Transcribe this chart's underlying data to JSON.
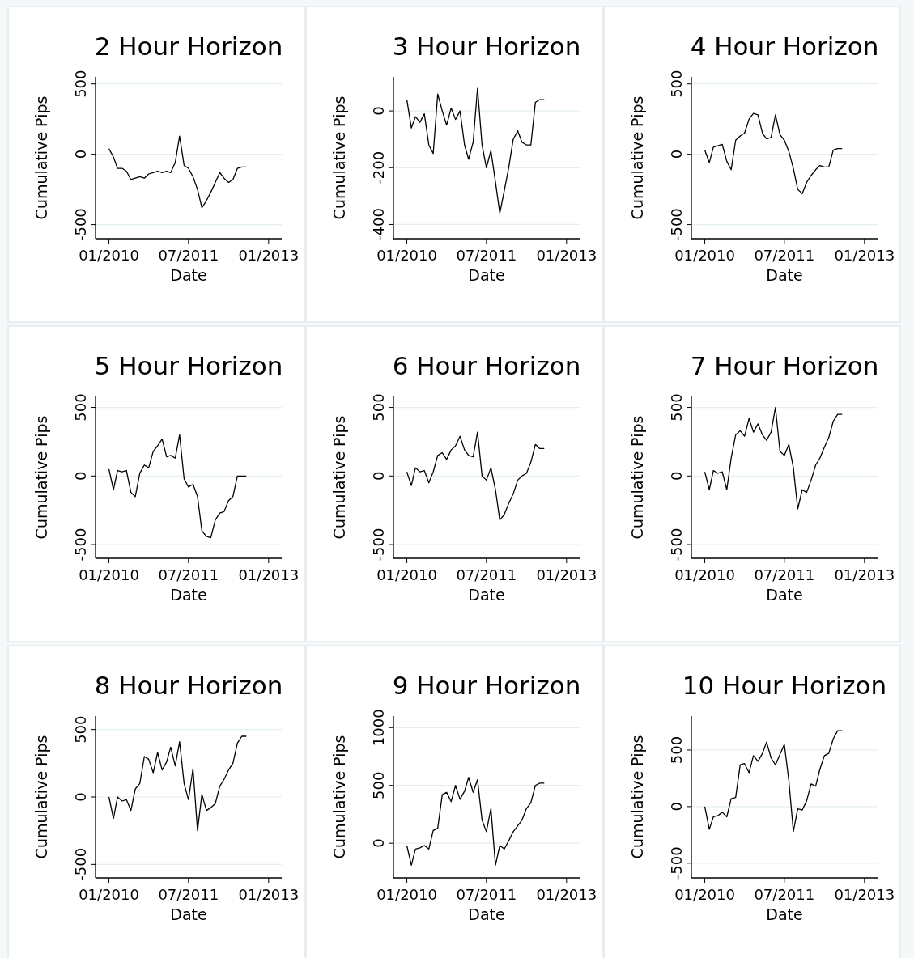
{
  "chart_data": [
    {
      "type": "line",
      "title": "2 Hour Horizon",
      "xlabel": "Date",
      "ylabel": "Cumulative Pips",
      "grid": "y",
      "color": "#000000",
      "xlim": [
        "2009-10",
        "2013-04"
      ],
      "xticks": [
        {
          "value": "2010-01",
          "label": "01/2010"
        },
        {
          "value": "2011-07",
          "label": "07/2011"
        },
        {
          "value": "2013-01",
          "label": "01/2013"
        }
      ],
      "ylim": [
        -600,
        550
      ],
      "yticks": [
        -500,
        0,
        500
      ],
      "x": [
        "2010-01",
        "2010-02",
        "2010-03",
        "2010-04",
        "2010-05",
        "2010-06",
        "2010-07",
        "2010-08",
        "2010-09",
        "2010-10",
        "2010-11",
        "2010-12",
        "2011-01",
        "2011-02",
        "2011-03",
        "2011-04",
        "2011-05",
        "2011-06",
        "2011-07",
        "2011-08",
        "2011-09",
        "2011-10",
        "2011-11",
        "2011-12",
        "2012-01",
        "2012-02",
        "2012-03",
        "2012-04",
        "2012-05",
        "2012-06",
        "2012-07",
        "2012-08"
      ],
      "values": [
        40,
        -20,
        -100,
        -100,
        -120,
        -180,
        -170,
        -160,
        -170,
        -140,
        -130,
        -120,
        -130,
        -120,
        -130,
        -60,
        130,
        -80,
        -100,
        -160,
        -250,
        -380,
        -330,
        -270,
        -200,
        -130,
        -170,
        -200,
        -180,
        -100,
        -90,
        -90
      ]
    },
    {
      "type": "line",
      "title": "3 Hour Horizon",
      "xlabel": "Date",
      "ylabel": "Cumulative Pips",
      "grid": "y",
      "color": "#000000",
      "xlim": [
        "2009-10",
        "2013-04"
      ],
      "xticks": [
        {
          "value": "2010-01",
          "label": "01/2010"
        },
        {
          "value": "2011-07",
          "label": "07/2011"
        },
        {
          "value": "2013-01",
          "label": "01/2013"
        }
      ],
      "ylim": [
        -450,
        120
      ],
      "yticks": [
        -400,
        -200,
        0
      ],
      "x": [
        "2010-01",
        "2010-02",
        "2010-03",
        "2010-04",
        "2010-05",
        "2010-06",
        "2010-07",
        "2010-08",
        "2010-09",
        "2010-10",
        "2010-11",
        "2010-12",
        "2011-01",
        "2011-02",
        "2011-03",
        "2011-04",
        "2011-05",
        "2011-06",
        "2011-07",
        "2011-08",
        "2011-09",
        "2011-10",
        "2011-11",
        "2011-12",
        "2012-01",
        "2012-02",
        "2012-03",
        "2012-04",
        "2012-05",
        "2012-06",
        "2012-07",
        "2012-08"
      ],
      "values": [
        40,
        -60,
        -20,
        -40,
        -10,
        -120,
        -150,
        60,
        0,
        -50,
        10,
        -30,
        0,
        -120,
        -170,
        -110,
        80,
        -120,
        -200,
        -140,
        -250,
        -360,
        -280,
        -200,
        -100,
        -70,
        -110,
        -120,
        -120,
        30,
        40,
        40
      ]
    },
    {
      "type": "line",
      "title": "4 Hour Horizon",
      "xlabel": "Date",
      "ylabel": "Cumulative Pips",
      "grid": "y",
      "color": "#000000",
      "xlim": [
        "2009-10",
        "2013-04"
      ],
      "xticks": [
        {
          "value": "2010-01",
          "label": "01/2010"
        },
        {
          "value": "2011-07",
          "label": "07/2011"
        },
        {
          "value": "2013-01",
          "label": "01/2013"
        }
      ],
      "ylim": [
        -600,
        550
      ],
      "yticks": [
        -500,
        0,
        500
      ],
      "x": [
        "2010-01",
        "2010-02",
        "2010-03",
        "2010-04",
        "2010-05",
        "2010-06",
        "2010-07",
        "2010-08",
        "2010-09",
        "2010-10",
        "2010-11",
        "2010-12",
        "2011-01",
        "2011-02",
        "2011-03",
        "2011-04",
        "2011-05",
        "2011-06",
        "2011-07",
        "2011-08",
        "2011-09",
        "2011-10",
        "2011-11",
        "2011-12",
        "2012-01",
        "2012-02",
        "2012-03",
        "2012-04",
        "2012-05",
        "2012-06",
        "2012-07",
        "2012-08"
      ],
      "values": [
        30,
        -60,
        50,
        60,
        70,
        -50,
        -110,
        100,
        130,
        150,
        250,
        290,
        280,
        150,
        110,
        120,
        280,
        140,
        100,
        20,
        -100,
        -250,
        -280,
        -200,
        -150,
        -110,
        -80,
        -90,
        -90,
        30,
        40,
        40
      ]
    },
    {
      "type": "line",
      "title": "5 Hour Horizon",
      "xlabel": "Date",
      "ylabel": "Cumulative Pips",
      "grid": "y",
      "color": "#000000",
      "xlim": [
        "2009-10",
        "2013-04"
      ],
      "xticks": [
        {
          "value": "2010-01",
          "label": "01/2010"
        },
        {
          "value": "2011-07",
          "label": "07/2011"
        },
        {
          "value": "2013-01",
          "label": "01/2013"
        }
      ],
      "ylim": [
        -600,
        580
      ],
      "yticks": [
        -500,
        0,
        500
      ],
      "x": [
        "2010-01",
        "2010-02",
        "2010-03",
        "2010-04",
        "2010-05",
        "2010-06",
        "2010-07",
        "2010-08",
        "2010-09",
        "2010-10",
        "2010-11",
        "2010-12",
        "2011-01",
        "2011-02",
        "2011-03",
        "2011-04",
        "2011-05",
        "2011-06",
        "2011-07",
        "2011-08",
        "2011-09",
        "2011-10",
        "2011-11",
        "2011-12",
        "2012-01",
        "2012-02",
        "2012-03",
        "2012-04",
        "2012-05",
        "2012-06",
        "2012-07",
        "2012-08"
      ],
      "values": [
        50,
        -100,
        40,
        30,
        40,
        -120,
        -150,
        20,
        80,
        60,
        180,
        220,
        270,
        140,
        150,
        130,
        300,
        -20,
        -80,
        -60,
        -150,
        -400,
        -440,
        -450,
        -320,
        -270,
        -260,
        -180,
        -150,
        0,
        0,
        0
      ]
    },
    {
      "type": "line",
      "title": "6 Hour Horizon",
      "xlabel": "Date",
      "ylabel": "Cumulative Pips",
      "grid": "y",
      "color": "#000000",
      "xlim": [
        "2009-10",
        "2013-04"
      ],
      "xticks": [
        {
          "value": "2010-01",
          "label": "01/2010"
        },
        {
          "value": "2011-07",
          "label": "07/2011"
        },
        {
          "value": "2013-01",
          "label": "01/2013"
        }
      ],
      "ylim": [
        -600,
        580
      ],
      "yticks": [
        -500,
        0,
        500
      ],
      "x": [
        "2010-01",
        "2010-02",
        "2010-03",
        "2010-04",
        "2010-05",
        "2010-06",
        "2010-07",
        "2010-08",
        "2010-09",
        "2010-10",
        "2010-11",
        "2010-12",
        "2011-01",
        "2011-02",
        "2011-03",
        "2011-04",
        "2011-05",
        "2011-06",
        "2011-07",
        "2011-08",
        "2011-09",
        "2011-10",
        "2011-11",
        "2011-12",
        "2012-01",
        "2012-02",
        "2012-03",
        "2012-04",
        "2012-05",
        "2012-06",
        "2012-07",
        "2012-08"
      ],
      "values": [
        30,
        -70,
        60,
        30,
        40,
        -50,
        30,
        150,
        170,
        120,
        190,
        220,
        290,
        190,
        150,
        140,
        320,
        0,
        -30,
        60,
        -100,
        -320,
        -280,
        -200,
        -130,
        -30,
        0,
        20,
        100,
        230,
        200,
        200
      ]
    },
    {
      "type": "line",
      "title": "7 Hour Horizon",
      "xlabel": "Date",
      "ylabel": "Cumulative Pips",
      "grid": "y",
      "color": "#000000",
      "xlim": [
        "2009-10",
        "2013-04"
      ],
      "xticks": [
        {
          "value": "2010-01",
          "label": "01/2010"
        },
        {
          "value": "2011-07",
          "label": "07/2011"
        },
        {
          "value": "2013-01",
          "label": "01/2013"
        }
      ],
      "ylim": [
        -600,
        580
      ],
      "yticks": [
        -500,
        0,
        500
      ],
      "x": [
        "2010-01",
        "2010-02",
        "2010-03",
        "2010-04",
        "2010-05",
        "2010-06",
        "2010-07",
        "2010-08",
        "2010-09",
        "2010-10",
        "2010-11",
        "2010-12",
        "2011-01",
        "2011-02",
        "2011-03",
        "2011-04",
        "2011-05",
        "2011-06",
        "2011-07",
        "2011-08",
        "2011-09",
        "2011-10",
        "2011-11",
        "2011-12",
        "2012-01",
        "2012-02",
        "2012-03",
        "2012-04",
        "2012-05",
        "2012-06",
        "2012-07",
        "2012-08"
      ],
      "values": [
        30,
        -100,
        40,
        20,
        30,
        -100,
        130,
        300,
        330,
        290,
        420,
        320,
        380,
        300,
        260,
        320,
        500,
        180,
        150,
        230,
        60,
        -240,
        -100,
        -120,
        -30,
        80,
        130,
        210,
        280,
        400,
        450,
        450
      ]
    },
    {
      "type": "line",
      "title": "8 Hour Horizon",
      "xlabel": "Date",
      "ylabel": "Cumulative Pips",
      "grid": "y",
      "color": "#000000",
      "xlim": [
        "2009-10",
        "2013-04"
      ],
      "xticks": [
        {
          "value": "2010-01",
          "label": "01/2010"
        },
        {
          "value": "2011-07",
          "label": "07/2011"
        },
        {
          "value": "2013-01",
          "label": "01/2013"
        }
      ],
      "ylim": [
        -600,
        600
      ],
      "yticks": [
        -500,
        0,
        500
      ],
      "x": [
        "2010-01",
        "2010-02",
        "2010-03",
        "2010-04",
        "2010-05",
        "2010-06",
        "2010-07",
        "2010-08",
        "2010-09",
        "2010-10",
        "2010-11",
        "2010-12",
        "2011-01",
        "2011-02",
        "2011-03",
        "2011-04",
        "2011-05",
        "2011-06",
        "2011-07",
        "2011-08",
        "2011-09",
        "2011-10",
        "2011-11",
        "2011-12",
        "2012-01",
        "2012-02",
        "2012-03",
        "2012-04",
        "2012-05",
        "2012-06",
        "2012-07",
        "2012-08"
      ],
      "values": [
        0,
        -160,
        0,
        -30,
        -20,
        -100,
        60,
        100,
        300,
        280,
        180,
        330,
        200,
        260,
        370,
        230,
        410,
        100,
        -20,
        210,
        -250,
        20,
        -100,
        -80,
        -50,
        80,
        130,
        200,
        250,
        400,
        450,
        450
      ]
    },
    {
      "type": "line",
      "title": "9 Hour Horizon",
      "xlabel": "Date",
      "ylabel": "Cumulative Pips",
      "grid": "y",
      "color": "#000000",
      "xlim": [
        "2009-10",
        "2013-04"
      ],
      "xticks": [
        {
          "value": "2010-01",
          "label": "01/2010"
        },
        {
          "value": "2011-07",
          "label": "07/2011"
        },
        {
          "value": "2013-01",
          "label": "01/2013"
        }
      ],
      "ylim": [
        -300,
        1100
      ],
      "yticks": [
        0,
        500,
        1000
      ],
      "x": [
        "2010-01",
        "2010-02",
        "2010-03",
        "2010-04",
        "2010-05",
        "2010-06",
        "2010-07",
        "2010-08",
        "2010-09",
        "2010-10",
        "2010-11",
        "2010-12",
        "2011-01",
        "2011-02",
        "2011-03",
        "2011-04",
        "2011-05",
        "2011-06",
        "2011-07",
        "2011-08",
        "2011-09",
        "2011-10",
        "2011-11",
        "2011-12",
        "2012-01",
        "2012-02",
        "2012-03",
        "2012-04",
        "2012-05",
        "2012-06",
        "2012-07",
        "2012-08"
      ],
      "values": [
        -20,
        -190,
        -50,
        -40,
        -20,
        -50,
        110,
        130,
        420,
        440,
        360,
        500,
        380,
        450,
        570,
        440,
        550,
        200,
        100,
        300,
        -190,
        -20,
        -50,
        20,
        100,
        150,
        200,
        300,
        350,
        500,
        520,
        520
      ]
    },
    {
      "type": "line",
      "title": "10 Hour Horizon",
      "xlabel": "Date",
      "ylabel": "Cumulative Pips",
      "grid": "y",
      "color": "#000000",
      "xlim": [
        "2009-10",
        "2013-04"
      ],
      "xticks": [
        {
          "value": "2010-01",
          "label": "01/2010"
        },
        {
          "value": "2011-07",
          "label": "07/2011"
        },
        {
          "value": "2013-01",
          "label": "01/2013"
        }
      ],
      "ylim": [
        -630,
        800
      ],
      "yticks": [
        -500,
        0,
        500
      ],
      "x": [
        "2010-01",
        "2010-02",
        "2010-03",
        "2010-04",
        "2010-05",
        "2010-06",
        "2010-07",
        "2010-08",
        "2010-09",
        "2010-10",
        "2010-11",
        "2010-12",
        "2011-01",
        "2011-02",
        "2011-03",
        "2011-04",
        "2011-05",
        "2011-06",
        "2011-07",
        "2011-08",
        "2011-09",
        "2011-10",
        "2011-11",
        "2011-12",
        "2012-01",
        "2012-02",
        "2012-03",
        "2012-04",
        "2012-05",
        "2012-06",
        "2012-07",
        "2012-08"
      ],
      "values": [
        0,
        -200,
        -90,
        -80,
        -50,
        -90,
        70,
        80,
        370,
        380,
        300,
        450,
        400,
        470,
        570,
        430,
        370,
        460,
        550,
        230,
        -220,
        -20,
        -30,
        50,
        200,
        180,
        330,
        450,
        470,
        600,
        670,
        670
      ]
    }
  ]
}
